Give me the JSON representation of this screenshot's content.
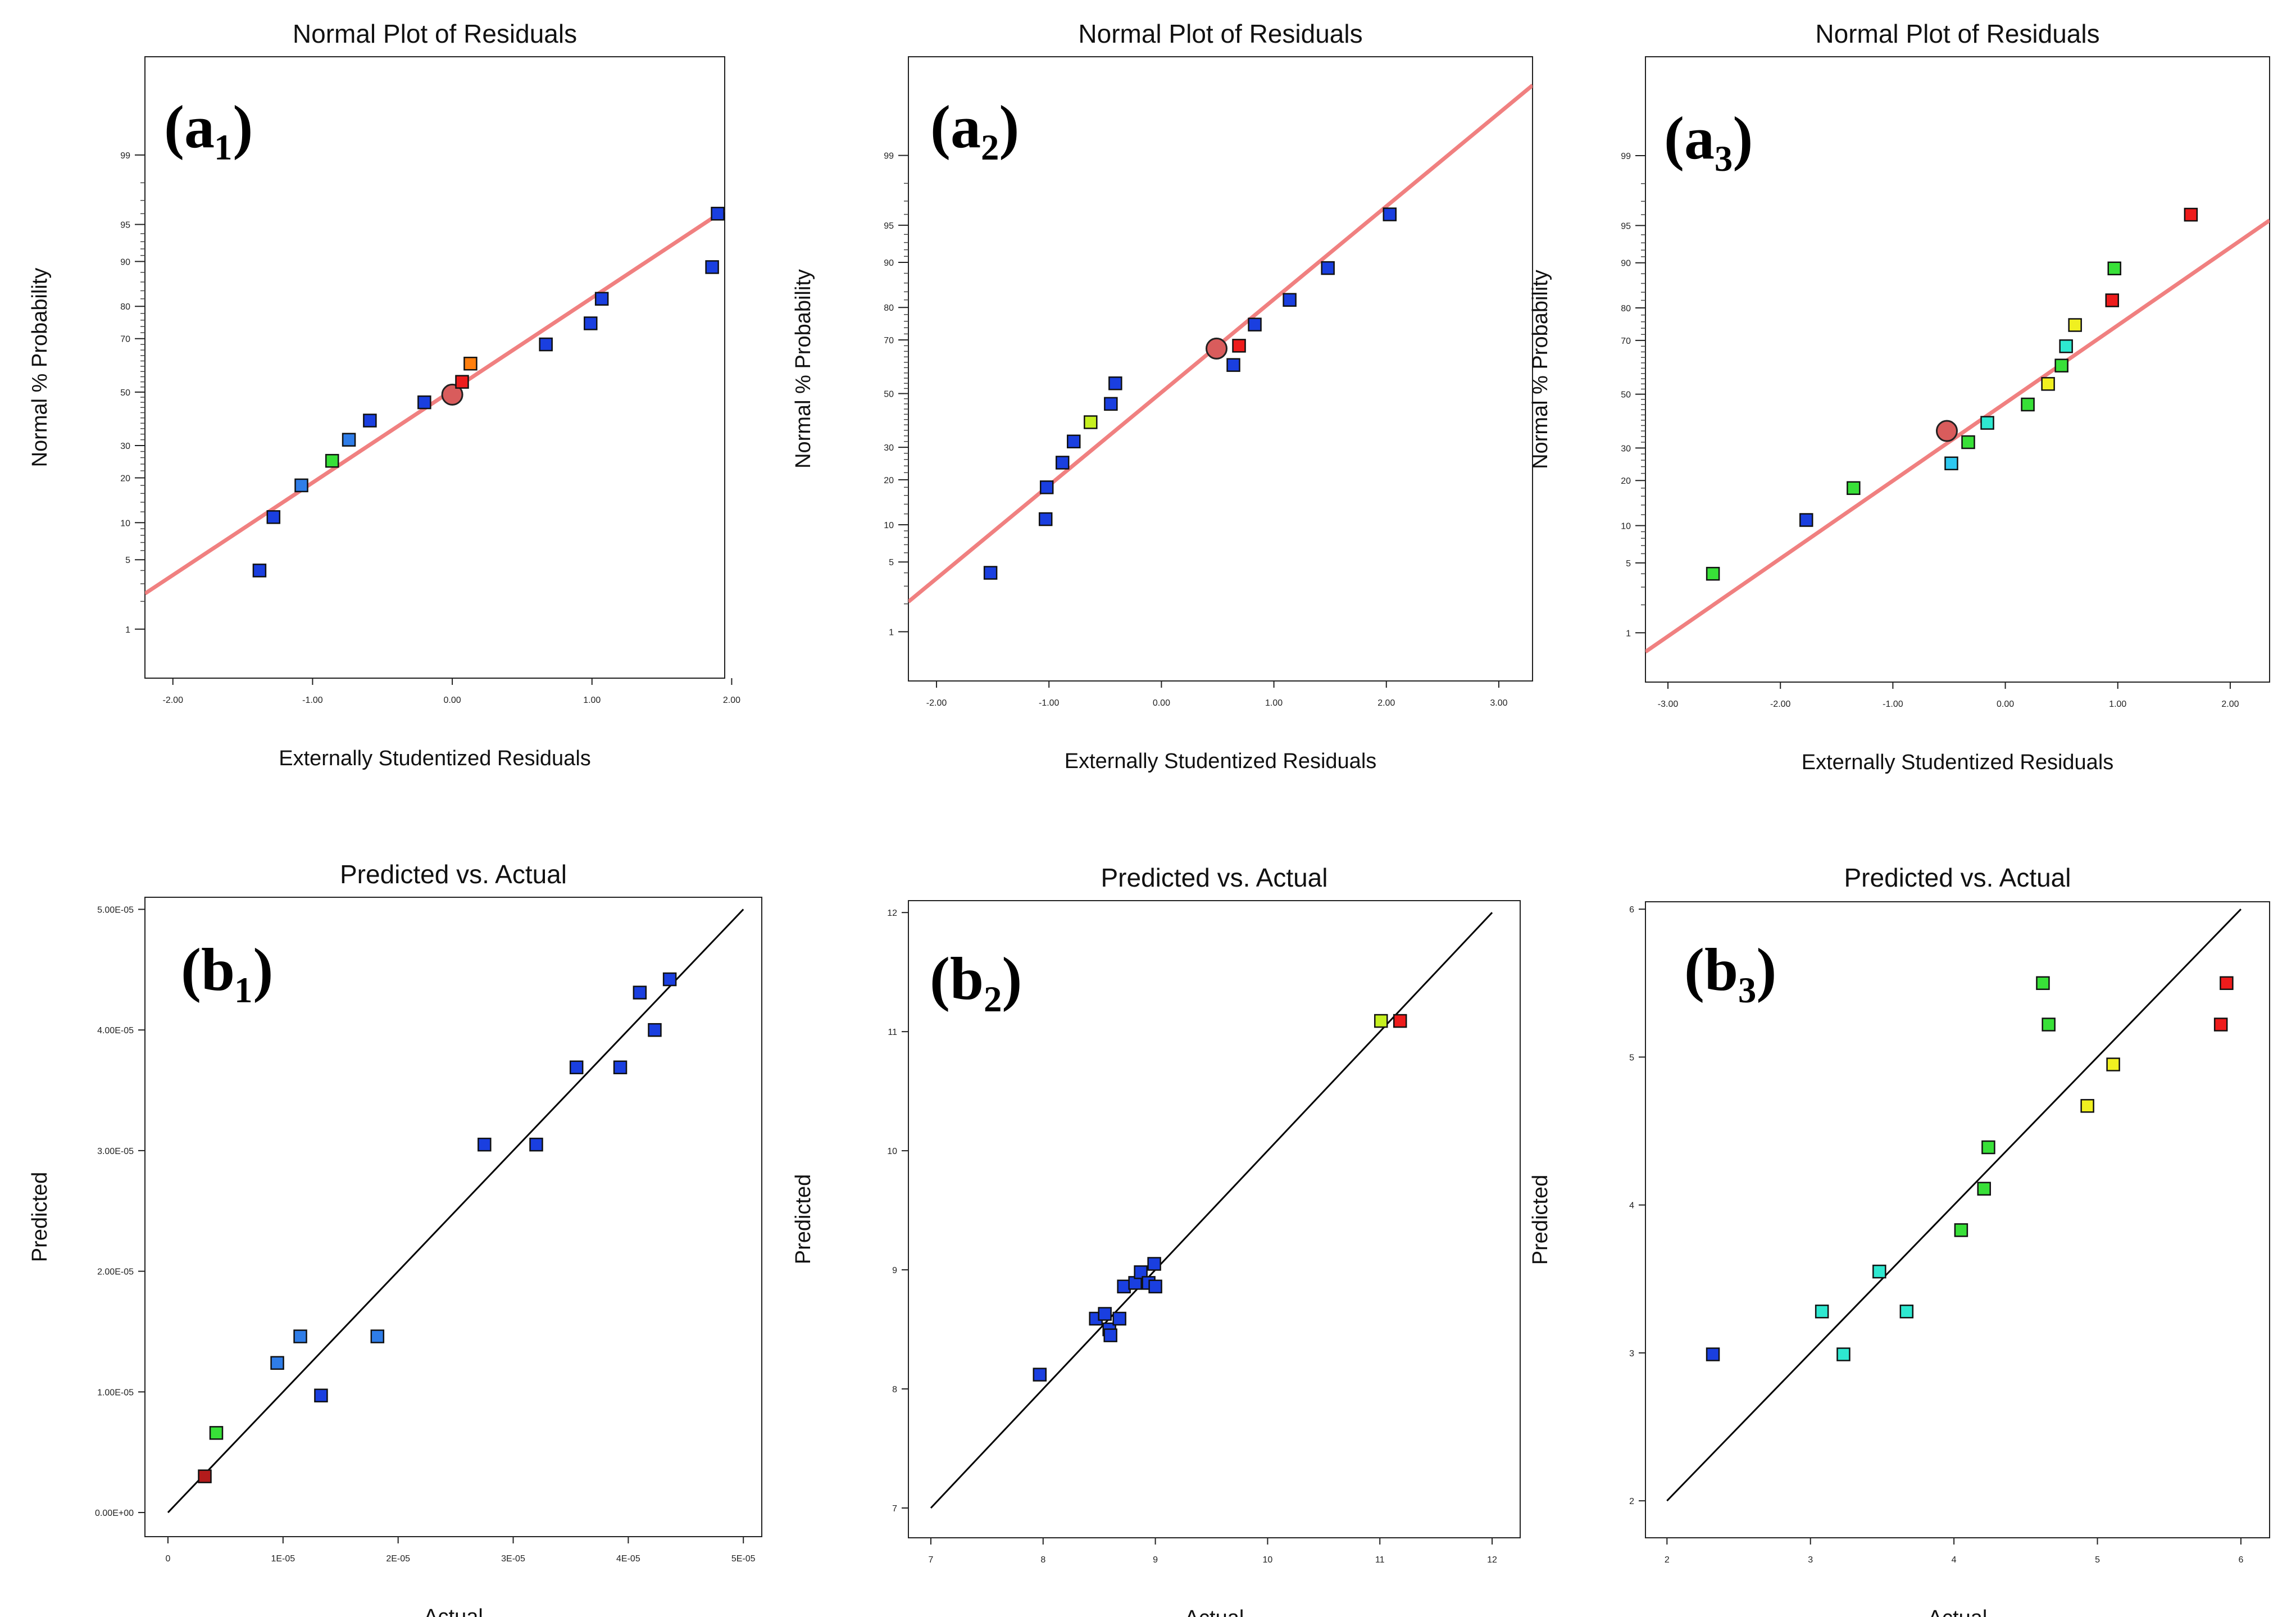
{
  "chart_data": [
    {
      "id": "a1",
      "type": "scatter",
      "kind": "normal",
      "panel_label": "(a₁)",
      "title": "Normal Plot of Residuals",
      "xlabel": "Externally Studentized Residuals",
      "ylabel": "Normal % Probability",
      "xlim": [
        -2.2,
        1.95
      ],
      "xticks": [
        -2,
        -1,
        0,
        1,
        2
      ],
      "xtick_labels": [
        "-2.00",
        "-1.00",
        "0.00",
        "1.00",
        "2.00"
      ],
      "yticks": [
        1,
        5,
        10,
        20,
        30,
        50,
        70,
        80,
        90,
        95,
        99
      ],
      "points": [
        {
          "x": -1.38,
          "p": 4,
          "color": "#1a3fe0"
        },
        {
          "x": -1.28,
          "p": 11,
          "color": "#1a3fe0"
        },
        {
          "x": -1.08,
          "p": 18,
          "color": "#2f7de8"
        },
        {
          "x": -0.86,
          "p": 25,
          "color": "#38e038"
        },
        {
          "x": -0.74,
          "p": 32,
          "color": "#2f7de8"
        },
        {
          "x": -0.59,
          "p": 39,
          "color": "#1a3fe0"
        },
        {
          "x": -0.2,
          "p": 46,
          "color": "#1a3fe0"
        },
        {
          "x": 0.07,
          "p": 54,
          "color": "#ee1c1c"
        },
        {
          "x": 0.13,
          "p": 61,
          "color": "#ff7f0e"
        },
        {
          "x": 0.67,
          "p": 68,
          "color": "#1a3fe0"
        },
        {
          "x": 0.99,
          "p": 75,
          "color": "#1a3fe0"
        },
        {
          "x": 1.07,
          "p": 82,
          "color": "#1a3fe0"
        },
        {
          "x": 1.86,
          "p": 89,
          "color": "#1a3fe0"
        },
        {
          "x": 1.9,
          "p": 96,
          "color": "#1a3fe0"
        }
      ],
      "center_point": {
        "x": 0.0,
        "p": 49
      },
      "ref_line": {
        "x1": -2.2,
        "p1": 2.4,
        "x2": 1.95,
        "p2": 96.3
      }
    },
    {
      "id": "a2",
      "type": "scatter",
      "kind": "normal",
      "panel_label": "(a₂)",
      "title": "Normal Plot of Residuals",
      "xlabel": "Externally Studentized Residuals",
      "ylabel": "Normal % Probability",
      "xlim": [
        -2.25,
        3.3
      ],
      "xticks": [
        -2,
        -1,
        0,
        1,
        2,
        3
      ],
      "xtick_labels": [
        "-2.00",
        "-1.00",
        "0.00",
        "1.00",
        "2.00",
        "3.00"
      ],
      "yticks": [
        1,
        5,
        10,
        20,
        30,
        50,
        70,
        80,
        90,
        95,
        99
      ],
      "points": [
        {
          "x": -1.52,
          "p": 4,
          "color": "#1a3fe0"
        },
        {
          "x": -1.03,
          "p": 11,
          "color": "#1a3fe0"
        },
        {
          "x": -1.02,
          "p": 18,
          "color": "#1a3fe0"
        },
        {
          "x": -0.88,
          "p": 25,
          "color": "#1a3fe0"
        },
        {
          "x": -0.78,
          "p": 32,
          "color": "#1a3fe0"
        },
        {
          "x": -0.63,
          "p": 39,
          "color": "#c6f020"
        },
        {
          "x": -0.45,
          "p": 46,
          "color": "#1a3fe0"
        },
        {
          "x": -0.41,
          "p": 54,
          "color": "#1a3fe0"
        },
        {
          "x": 0.64,
          "p": 61,
          "color": "#1a3fe0"
        },
        {
          "x": 0.69,
          "p": 68,
          "color": "#ee1c1c"
        },
        {
          "x": 0.83,
          "p": 75,
          "color": "#1a3fe0"
        },
        {
          "x": 1.14,
          "p": 82,
          "color": "#1a3fe0"
        },
        {
          "x": 1.48,
          "p": 89,
          "color": "#1a3fe0"
        },
        {
          "x": 2.03,
          "p": 96,
          "color": "#1a3fe0"
        }
      ],
      "center_point": {
        "x": 0.49,
        "p": 67
      },
      "ref_line": {
        "x1": -2.25,
        "p1": 2.1,
        "x2": 3.3,
        "p2": 99.87
      }
    },
    {
      "id": "a3",
      "type": "scatter",
      "kind": "normal",
      "panel_label": "(a₃)",
      "title": "Normal Plot of Residuals",
      "xlabel": "Externally Studentized Residuals",
      "ylabel": "Normal % Probability",
      "xlim": [
        -3.2,
        2.35
      ],
      "xticks": [
        -3,
        -2,
        -1,
        0,
        1,
        2
      ],
      "xtick_labels": [
        "-3.00",
        "-2.00",
        "-1.00",
        "0.00",
        "1.00",
        "2.00"
      ],
      "yticks": [
        1,
        5,
        10,
        20,
        30,
        50,
        70,
        80,
        90,
        95,
        99
      ],
      "points": [
        {
          "x": -2.6,
          "p": 4,
          "color": "#38e038"
        },
        {
          "x": -1.77,
          "p": 11,
          "color": "#1a3fe0"
        },
        {
          "x": -1.35,
          "p": 18,
          "color": "#38e038"
        },
        {
          "x": -0.48,
          "p": 25,
          "color": "#2ec8f0"
        },
        {
          "x": -0.33,
          "p": 32,
          "color": "#38e038"
        },
        {
          "x": -0.16,
          "p": 39,
          "color": "#2ee8d0"
        },
        {
          "x": 0.2,
          "p": 46,
          "color": "#38e038"
        },
        {
          "x": 0.38,
          "p": 54,
          "color": "#f0f020"
        },
        {
          "x": 0.5,
          "p": 61,
          "color": "#38e038"
        },
        {
          "x": 0.54,
          "p": 68,
          "color": "#2ee8d0"
        },
        {
          "x": 0.62,
          "p": 75,
          "color": "#f0f020"
        },
        {
          "x": 0.95,
          "p": 82,
          "color": "#ee1c1c"
        },
        {
          "x": 0.97,
          "p": 89,
          "color": "#38e038"
        },
        {
          "x": 1.65,
          "p": 96,
          "color": "#ee1c1c"
        }
      ],
      "center_point": {
        "x": -0.52,
        "p": 36
      },
      "ref_line": {
        "x1": -3.2,
        "p1": 0.6,
        "x2": 2.35,
        "p2": 95.5
      }
    },
    {
      "id": "b1",
      "type": "scatter",
      "kind": "pva",
      "panel_label": "(b₁)",
      "title": "Predicted vs. Actual",
      "xlabel": "Actual",
      "ylabel": "Predicted",
      "xlim": [
        -2e-06,
        5.16e-05
      ],
      "ylim": [
        -2e-06,
        5.1e-05
      ],
      "xticks": [
        0,
        1e-05,
        2e-05,
        3e-05,
        4e-05,
        5e-05
      ],
      "xtick_labels": [
        "0",
        "1E-05",
        "2E-05",
        "3E-05",
        "4E-05",
        "5E-05"
      ],
      "yticks": [
        0,
        1e-05,
        2e-05,
        3e-05,
        4e-05,
        5e-05
      ],
      "ytick_labels": [
        "0.00E+00",
        "1.00E-05",
        "2.00E-05",
        "3.00E-05",
        "4.00E-05",
        "5.00E-05"
      ],
      "points": [
        {
          "x": 3.2e-06,
          "y": 3e-06,
          "color": "#b31b1b"
        },
        {
          "x": 4.2e-06,
          "y": 6.6e-06,
          "color": "#38e038"
        },
        {
          "x": 9.5e-06,
          "y": 1.24e-05,
          "color": "#2f7de8"
        },
        {
          "x": 1.15e-05,
          "y": 1.46e-05,
          "color": "#2f7de8"
        },
        {
          "x": 1.33e-05,
          "y": 9.7e-06,
          "color": "#1a3fe0"
        },
        {
          "x": 1.82e-05,
          "y": 1.46e-05,
          "color": "#2f7de8"
        },
        {
          "x": 2.75e-05,
          "y": 3.05e-05,
          "color": "#1a3fe0"
        },
        {
          "x": 3.2e-05,
          "y": 3.05e-05,
          "color": "#1a3fe0"
        },
        {
          "x": 3.55e-05,
          "y": 3.69e-05,
          "color": "#1a3fe0"
        },
        {
          "x": 3.93e-05,
          "y": 3.69e-05,
          "color": "#1a3fe0"
        },
        {
          "x": 4.1e-05,
          "y": 4.31e-05,
          "color": "#1a3fe0"
        },
        {
          "x": 4.23e-05,
          "y": 4e-05,
          "color": "#1a3fe0"
        },
        {
          "x": 4.36e-05,
          "y": 4.42e-05,
          "color": "#1a3fe0"
        }
      ],
      "ref_line": {
        "x1": 0,
        "y1": 0,
        "x2": 5e-05,
        "y2": 5e-05
      }
    },
    {
      "id": "b2",
      "type": "scatter",
      "kind": "pva",
      "panel_label": "(b₂)",
      "title": "Predicted vs. Actual",
      "xlabel": "Actual",
      "ylabel": "Predicted",
      "xlim": [
        6.8,
        12.25
      ],
      "ylim": [
        6.75,
        12.1
      ],
      "xticks": [
        7,
        8,
        9,
        10,
        11,
        12
      ],
      "xtick_labels": [
        "7",
        "8",
        "9",
        "10",
        "11",
        "12"
      ],
      "yticks": [
        7,
        8,
        9,
        10,
        11,
        12
      ],
      "ytick_labels": [
        "7",
        "8",
        "9",
        "10",
        "11",
        "12"
      ],
      "points": [
        {
          "x": 7.97,
          "y": 8.12,
          "color": "#1a3fe0"
        },
        {
          "x": 8.47,
          "y": 8.59,
          "color": "#1a3fe0"
        },
        {
          "x": 8.55,
          "y": 8.63,
          "color": "#1a3fe0"
        },
        {
          "x": 8.59,
          "y": 8.5,
          "color": "#1a3fe0"
        },
        {
          "x": 8.6,
          "y": 8.45,
          "color": "#1a3fe0"
        },
        {
          "x": 8.68,
          "y": 8.59,
          "color": "#1a3fe0"
        },
        {
          "x": 8.72,
          "y": 8.86,
          "color": "#1a3fe0"
        },
        {
          "x": 8.82,
          "y": 8.89,
          "color": "#1a3fe0"
        },
        {
          "x": 8.87,
          "y": 8.98,
          "color": "#1a3fe0"
        },
        {
          "x": 8.94,
          "y": 8.89,
          "color": "#1a3fe0"
        },
        {
          "x": 8.99,
          "y": 9.05,
          "color": "#1a3fe0"
        },
        {
          "x": 9.0,
          "y": 8.86,
          "color": "#1a3fe0"
        },
        {
          "x": 11.01,
          "y": 11.09,
          "color": "#c6f020"
        },
        {
          "x": 11.18,
          "y": 11.09,
          "color": "#ee1c1c"
        }
      ],
      "ref_line": {
        "x1": 7,
        "y1": 7,
        "x2": 12,
        "y2": 12
      }
    },
    {
      "id": "b3",
      "type": "scatter",
      "kind": "pva",
      "panel_label": "(b₃)",
      "title": "Predicted vs. Actual",
      "xlabel": "Actual",
      "ylabel": "Predicted",
      "xlim": [
        1.85,
        6.2
      ],
      "ylim": [
        1.75,
        6.05
      ],
      "xticks": [
        2,
        3,
        4,
        5,
        6
      ],
      "xtick_labels": [
        "2",
        "3",
        "4",
        "5",
        "6"
      ],
      "yticks": [
        2,
        3,
        4,
        5,
        6
      ],
      "ytick_labels": [
        "2",
        "3",
        "4",
        "5",
        "6"
      ],
      "points": [
        {
          "x": 2.32,
          "y": 2.99,
          "color": "#1a3fe0"
        },
        {
          "x": 3.08,
          "y": 3.28,
          "color": "#2ee8d0"
        },
        {
          "x": 3.23,
          "y": 2.99,
          "color": "#2ee8d0"
        },
        {
          "x": 3.48,
          "y": 3.55,
          "color": "#2ee8d0"
        },
        {
          "x": 3.67,
          "y": 3.28,
          "color": "#2ee8d0"
        },
        {
          "x": 4.05,
          "y": 3.83,
          "color": "#38e038"
        },
        {
          "x": 4.21,
          "y": 4.11,
          "color": "#38e038"
        },
        {
          "x": 4.24,
          "y": 4.39,
          "color": "#38e038"
        },
        {
          "x": 4.62,
          "y": 5.5,
          "color": "#38e038"
        },
        {
          "x": 4.66,
          "y": 5.22,
          "color": "#38e038"
        },
        {
          "x": 4.93,
          "y": 4.67,
          "color": "#f0f020"
        },
        {
          "x": 5.11,
          "y": 4.95,
          "color": "#f0f020"
        },
        {
          "x": 5.86,
          "y": 5.22,
          "color": "#ee1c1c"
        },
        {
          "x": 5.9,
          "y": 5.5,
          "color": "#ee1c1c"
        }
      ],
      "ref_line": {
        "x1": 2,
        "y1": 2,
        "x2": 6,
        "y2": 6
      }
    }
  ]
}
